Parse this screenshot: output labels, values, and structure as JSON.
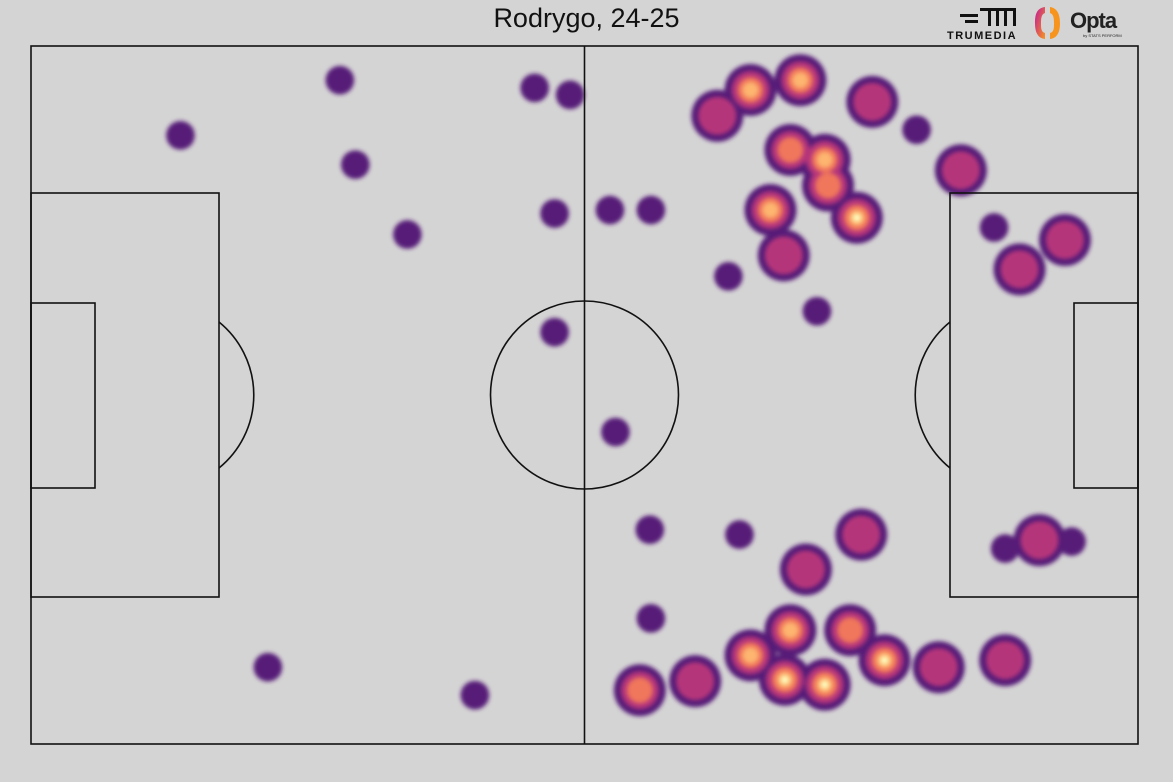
{
  "chart_data": {
    "type": "heatmap",
    "title": "Rodrygo, 24-25",
    "xlim": [
      0,
      100
    ],
    "ylim": [
      0,
      100
    ],
    "colormap": [
      "#561a78",
      "#b5367a",
      "#f0765c",
      "#fdb56f",
      "#fcfdbf"
    ],
    "background": "#d4d4d4",
    "points": [
      {
        "x": 65,
        "y": 6.3,
        "v": 4
      },
      {
        "x": 69.5,
        "y": 4.9,
        "v": 4
      },
      {
        "x": 71.7,
        "y": 16.3,
        "v": 4
      },
      {
        "x": 74.6,
        "y": 24.6,
        "v": 5
      },
      {
        "x": 66.8,
        "y": 23.5,
        "v": 4
      },
      {
        "x": 68.6,
        "y": 14.9,
        "v": 3
      },
      {
        "x": 62,
        "y": 10,
        "v": 2
      },
      {
        "x": 76,
        "y": 8,
        "v": 2
      },
      {
        "x": 72,
        "y": 20,
        "v": 3
      },
      {
        "x": 68,
        "y": 30,
        "v": 2
      },
      {
        "x": 63,
        "y": 33,
        "v": 1
      },
      {
        "x": 71,
        "y": 38,
        "v": 1
      },
      {
        "x": 68.1,
        "y": 90.8,
        "v": 5
      },
      {
        "x": 71.7,
        "y": 91.5,
        "v": 5
      },
      {
        "x": 77.1,
        "y": 88,
        "v": 5
      },
      {
        "x": 55,
        "y": 92.3,
        "v": 3
      },
      {
        "x": 65,
        "y": 87.3,
        "v": 4
      },
      {
        "x": 74,
        "y": 83.7,
        "v": 3
      },
      {
        "x": 68.6,
        "y": 83.7,
        "v": 4
      },
      {
        "x": 60,
        "y": 91,
        "v": 2
      },
      {
        "x": 82,
        "y": 89,
        "v": 2
      },
      {
        "x": 70,
        "y": 75,
        "v": 2
      },
      {
        "x": 75,
        "y": 70,
        "v": 2
      },
      {
        "x": 64,
        "y": 70,
        "v": 1
      },
      {
        "x": 88,
        "y": 88,
        "v": 2
      },
      {
        "x": 56,
        "y": 82,
        "v": 1
      },
      {
        "x": 91.1,
        "y": 70.8,
        "v": 2
      },
      {
        "x": 88,
        "y": 72,
        "v": 1
      },
      {
        "x": 94,
        "y": 71,
        "v": 1
      },
      {
        "x": 89.3,
        "y": 32,
        "v": 2
      },
      {
        "x": 93.4,
        "y": 27.8,
        "v": 2
      },
      {
        "x": 84,
        "y": 17.8,
        "v": 2
      },
      {
        "x": 87,
        "y": 26,
        "v": 1
      },
      {
        "x": 80,
        "y": 12,
        "v": 1
      },
      {
        "x": 13.5,
        "y": 12.8,
        "v": 1
      },
      {
        "x": 27.9,
        "y": 4.9,
        "v": 1
      },
      {
        "x": 29.3,
        "y": 17,
        "v": 1
      },
      {
        "x": 48.7,
        "y": 7,
        "v": 1
      },
      {
        "x": 40.1,
        "y": 93,
        "v": 1
      },
      {
        "x": 21.4,
        "y": 89,
        "v": 1
      },
      {
        "x": 47.3,
        "y": 41,
        "v": 1
      },
      {
        "x": 52.8,
        "y": 55.3,
        "v": 1
      },
      {
        "x": 55.9,
        "y": 69.3,
        "v": 1
      },
      {
        "x": 52.3,
        "y": 23.5,
        "v": 1
      },
      {
        "x": 56,
        "y": 23.5,
        "v": 1
      },
      {
        "x": 45.5,
        "y": 6,
        "v": 1
      },
      {
        "x": 34,
        "y": 27,
        "v": 1
      },
      {
        "x": 47.3,
        "y": 24,
        "v": 1
      }
    ]
  },
  "logos": {
    "trumedia": "TRUMEDIA",
    "opta": "Opta",
    "opta_sub": "by STATS PERFORM"
  }
}
